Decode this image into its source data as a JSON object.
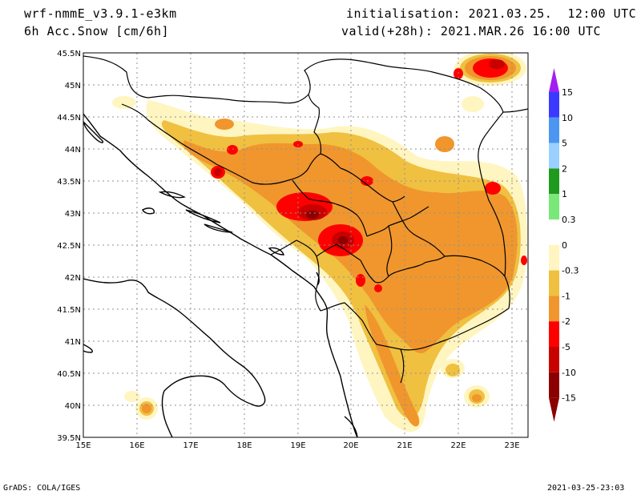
{
  "header": {
    "model": "wrf-nmmE_v3.9.1-e3km",
    "field": "6h Acc.Snow [cm/6h]",
    "init": "initialisation: 2021.03.25.  12:00 UTC",
    "valid": "valid(+28h): 2021.MAR.26 16:00 UTC"
  },
  "footer": {
    "credit": "GrADS: COLA/IGES",
    "timestamp": "2021-03-25-23:03"
  },
  "map": {
    "lat_ticks": [
      "45.5N",
      "45N",
      "44.5N",
      "44N",
      "43.5N",
      "43N",
      "42.5N",
      "42N",
      "41.5N",
      "41N",
      "40.5N",
      "40N",
      "39.5N"
    ],
    "lon_ticks": [
      "15E",
      "16E",
      "17E",
      "18E",
      "19E",
      "20E",
      "21E",
      "22E",
      "23E"
    ],
    "lat_range": [
      39.5,
      45.5
    ],
    "lon_range": [
      15,
      23.3
    ]
  },
  "legend": {
    "labels": [
      "15",
      "10",
      "5",
      "2",
      "1",
      "0.3",
      "0",
      "-0.3",
      "-1",
      "-2",
      "-5",
      "-10",
      "-15"
    ],
    "colors": [
      "#a020f0",
      "#3a3aff",
      "#4a96f0",
      "#9ad0ff",
      "#1e9a1e",
      "#78e878",
      "#ffffff",
      "#fff5c0",
      "#f0c040",
      "#f0962d",
      "#ff0000",
      "#c80000",
      "#8b0000"
    ]
  },
  "colors": {
    "snow_light": "#fff5c0",
    "snow_1": "#f0c040",
    "snow_2": "#f0962d",
    "snow_5": "#ff0000",
    "snow_10": "#c80000",
    "snow_15": "#8b0000"
  }
}
